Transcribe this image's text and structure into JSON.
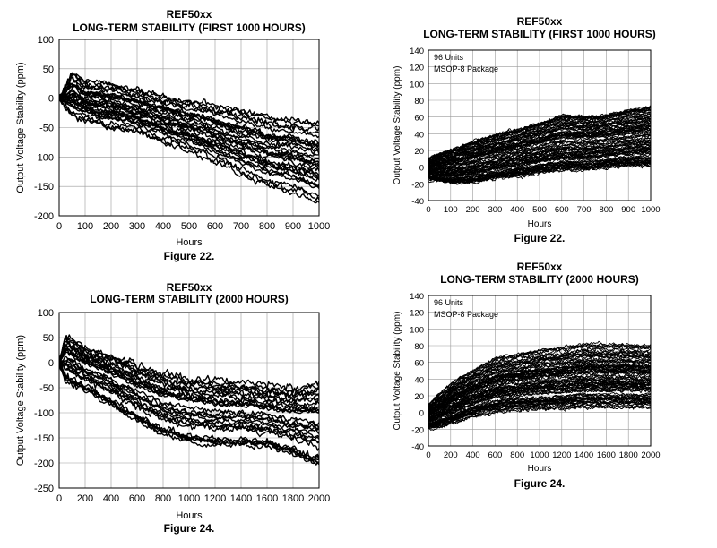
{
  "chart_data": [
    {
      "type": "line",
      "title": "REF50xx",
      "subtitle": "LONG-TERM STABILITY (FIRST 1000 HOURS)",
      "xlabel": "Hours",
      "ylabel": "Output Voltage Stability (ppm)",
      "caption": "Figure 22.",
      "xlim": [
        0,
        1000
      ],
      "ylim": [
        -200,
        100
      ],
      "xticks": [
        0,
        100,
        200,
        300,
        400,
        500,
        600,
        700,
        800,
        900,
        1000
      ],
      "yticks": [
        -200,
        -150,
        -100,
        -50,
        0,
        50,
        100
      ],
      "grid": true,
      "series_count": 30,
      "x": [
        0,
        50,
        100,
        200,
        300,
        400,
        500,
        600,
        700,
        800,
        900,
        1000
      ],
      "envelope": {
        "upper": [
          0,
          45,
          30,
          25,
          15,
          5,
          -5,
          -10,
          -20,
          -30,
          -35,
          -40
        ],
        "typical": [
          0,
          15,
          5,
          -5,
          -15,
          -25,
          -35,
          -45,
          -55,
          -65,
          -75,
          -85
        ],
        "lower": [
          0,
          -30,
          -40,
          -50,
          -60,
          -75,
          -90,
          -110,
          -130,
          -150,
          -160,
          -180
        ]
      }
    },
    {
      "type": "line",
      "title": "REF50xx",
      "subtitle": "LONG-TERM STABILITY (FIRST 1000 HOURS)",
      "xlabel": "Hours",
      "ylabel": "Output Voltage Stability (ppm)",
      "caption": "Figure 22.",
      "annotations": [
        "96 Units",
        "MSOP-8 Package"
      ],
      "xlim": [
        0,
        1000
      ],
      "ylim": [
        -40,
        140
      ],
      "xticks": [
        0,
        100,
        200,
        300,
        400,
        500,
        600,
        700,
        800,
        900,
        1000
      ],
      "yticks": [
        -40,
        -20,
        0,
        20,
        40,
        60,
        80,
        100,
        120,
        140
      ],
      "grid": true,
      "series_count": 96,
      "x": [
        0,
        100,
        200,
        300,
        400,
        500,
        600,
        700,
        800,
        900,
        1000
      ],
      "envelope": {
        "upper": [
          10,
          20,
          30,
          38,
          45,
          52,
          62,
          60,
          62,
          68,
          72
        ],
        "typical": [
          0,
          5,
          8,
          12,
          15,
          18,
          25,
          22,
          25,
          28,
          30
        ],
        "lower": [
          -15,
          -20,
          -20,
          -15,
          -12,
          -8,
          -5,
          -5,
          -2,
          0,
          0
        ]
      }
    },
    {
      "type": "line",
      "title": "REF50xx",
      "subtitle": "LONG-TERM STABILITY (2000 HOURS)",
      "xlabel": "Hours",
      "ylabel": "Output Voltage Stability (ppm)",
      "caption": "Figure 24.",
      "xlim": [
        0,
        2000
      ],
      "ylim": [
        -250,
        100
      ],
      "xticks": [
        0,
        200,
        400,
        600,
        800,
        1000,
        1200,
        1400,
        1600,
        1800,
        2000
      ],
      "yticks": [
        -250,
        -200,
        -150,
        -100,
        -50,
        0,
        50,
        100
      ],
      "grid": true,
      "series_count": 30,
      "x": [
        0,
        50,
        200,
        400,
        600,
        800,
        1000,
        1200,
        1400,
        1600,
        1800,
        2000
      ],
      "envelope": {
        "upper": [
          0,
          55,
          30,
          15,
          -5,
          -20,
          -30,
          -35,
          -40,
          -45,
          -50,
          -40
        ],
        "typical": [
          0,
          10,
          -10,
          -30,
          -55,
          -75,
          -95,
          -110,
          -115,
          -120,
          -125,
          -130
        ],
        "lower": [
          0,
          -40,
          -60,
          -90,
          -120,
          -150,
          -165,
          -170,
          -170,
          -175,
          -190,
          -215
        ]
      }
    },
    {
      "type": "line",
      "title": "REF50xx",
      "subtitle": "LONG-TERM STABILITY (2000 HOURS)",
      "xlabel": "Hours",
      "ylabel": "Output Voltage Stability (ppm)",
      "caption": "Figure 24.",
      "annotations": [
        "96 Units",
        "MSOP-8 Package"
      ],
      "xlim": [
        0,
        2000
      ],
      "ylim": [
        -40,
        140
      ],
      "xticks": [
        0,
        200,
        400,
        600,
        800,
        1000,
        1200,
        1400,
        1600,
        1800,
        2000
      ],
      "yticks": [
        -40,
        -20,
        0,
        20,
        40,
        60,
        80,
        100,
        120,
        140
      ],
      "grid": true,
      "series_count": 96,
      "x": [
        0,
        200,
        400,
        600,
        800,
        1000,
        1200,
        1400,
        1600,
        1800,
        2000
      ],
      "envelope": {
        "upper": [
          10,
          35,
          50,
          65,
          70,
          75,
          78,
          82,
          82,
          82,
          80
        ],
        "typical": [
          0,
          15,
          25,
          35,
          38,
          40,
          42,
          44,
          45,
          46,
          45
        ],
        "lower": [
          -20,
          -15,
          -5,
          0,
          2,
          3,
          4,
          5,
          5,
          5,
          5
        ]
      }
    }
  ]
}
